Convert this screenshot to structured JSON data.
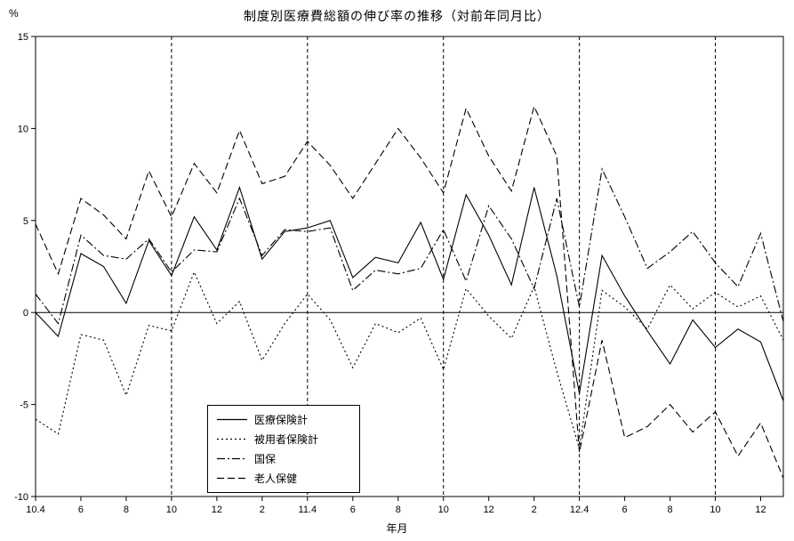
{
  "chart_data": {
    "type": "line",
    "title": "制度別医療費総額の伸び率の推移（対前年同月比）",
    "y_unit_label": "%",
    "xlabel": "年月",
    "ylabel": "%",
    "ylim": [
      -10,
      15
    ],
    "y_ticks": [
      15,
      10,
      5,
      0,
      -5,
      -10
    ],
    "grid": "vertical-dashed-every-6-months",
    "legend_position": "inside-bottom-left",
    "x_tick_labels": [
      "10.4",
      "6",
      "8",
      "10",
      "12",
      "2",
      "11.4",
      "6",
      "8",
      "10",
      "12",
      "2",
      "12.4",
      "6",
      "8",
      "10",
      "12"
    ],
    "x_tick_indices": [
      0,
      2,
      4,
      6,
      8,
      10,
      12,
      14,
      16,
      18,
      20,
      22,
      24,
      26,
      28,
      30,
      32
    ],
    "vline_indices": [
      6,
      12,
      18,
      24,
      30
    ],
    "line_color": "#000000",
    "background_color": "#ffffff",
    "series": [
      {
        "name": "医療保険計",
        "style": "solid",
        "values": [
          0.0,
          -1.3,
          3.2,
          2.5,
          0.5,
          3.9,
          2.0,
          5.2,
          3.4,
          6.8,
          2.9,
          4.4,
          4.6,
          5.0,
          1.9,
          3.0,
          2.7,
          4.9,
          1.8,
          6.4,
          4.2,
          1.5,
          6.8,
          2.0,
          -4.4,
          3.1,
          0.9,
          -1.0,
          -2.8,
          -0.4,
          -1.9,
          -0.9,
          -1.6,
          -4.8
        ]
      },
      {
        "name": "被用者保険計",
        "style": "dotted",
        "values": [
          -5.8,
          -6.6,
          -1.2,
          -1.5,
          -4.5,
          -0.7,
          -1.0,
          2.2,
          -0.6,
          0.6,
          -2.6,
          -0.6,
          1.0,
          -0.4,
          -3.0,
          -0.6,
          -1.1,
          -0.3,
          -3.1,
          1.3,
          -0.2,
          -1.4,
          1.4,
          -3.2,
          -7.4,
          1.2,
          0.3,
          -0.9,
          1.5,
          0.2,
          1.1,
          0.3,
          0.9,
          -1.5
        ]
      },
      {
        "name": "国保",
        "style": "dashdot",
        "values": [
          1.0,
          -0.6,
          4.2,
          3.1,
          2.9,
          4.0,
          2.2,
          3.4,
          3.3,
          6.2,
          3.1,
          4.5,
          4.4,
          4.6,
          1.2,
          2.3,
          2.1,
          2.4,
          4.5,
          1.7,
          5.8,
          4.0,
          1.3,
          6.2,
          0.3,
          7.8,
          5.2,
          2.4,
          3.3,
          4.4,
          2.7,
          1.4,
          4.3,
          -0.5
        ]
      },
      {
        "name": "老人保健",
        "style": "dashed",
        "values": [
          4.8,
          2.1,
          6.2,
          5.3,
          4.0,
          7.7,
          5.2,
          8.1,
          6.5,
          9.9,
          7.0,
          7.4,
          9.3,
          8.0,
          6.2,
          8.1,
          10.0,
          8.4,
          6.5,
          11.1,
          8.5,
          6.6,
          11.2,
          8.5,
          -7.6,
          -1.5,
          -6.8,
          -6.2,
          -5.0,
          -6.5,
          -5.4,
          -7.8,
          -6.0,
          -9.0
        ]
      }
    ]
  }
}
